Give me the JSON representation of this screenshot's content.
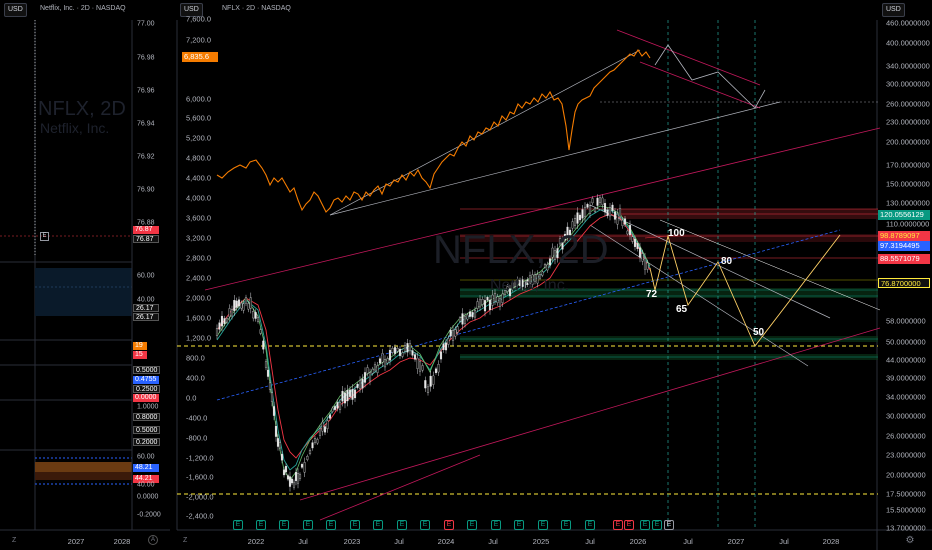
{
  "toolbar": {
    "currency": "USD",
    "currency_right": "USD"
  },
  "left_panel": {
    "title": "Netflix, Inc. · 2D · NASDAQ",
    "watermark_symbol": "NFLX, 2D",
    "watermark_name": "Netflix, Inc.",
    "price_ticks": [
      "77.00",
      "76.98",
      "76.96",
      "76.94",
      "76.92",
      "76.90",
      "76.88"
    ],
    "price_badges": [
      "76.87",
      "76.87"
    ],
    "e_marker": "E",
    "osc1_ticks": [
      "60.00",
      "40.00"
    ],
    "osc1_values": [
      "26.17",
      "26.17"
    ],
    "osc2_values": [
      "19",
      "15"
    ],
    "osc3_values": [
      "0.5000",
      "0.4755",
      "0.2500",
      "0.0000"
    ],
    "osc4_ticks": [
      "1.0000",
      "0.8000",
      "0.5000",
      "0.2000"
    ],
    "osc5_ticks": [
      "60.00",
      "40.00",
      "0.0000",
      "-0.2000"
    ],
    "osc5_values": [
      "48.21",
      "44.21"
    ],
    "x_labels": [
      "2027",
      "2028"
    ],
    "z_label": "Z",
    "a_label": "A"
  },
  "main": {
    "title": "NFLX · 2D · NASDAQ",
    "watermark_symbol": "NFLX, 2D",
    "watermark_name": "Netflix, Inc.",
    "left_axis": [
      "7,600.0",
      "7,200.0",
      "6,835.6",
      "6,000.0",
      "5,600.0",
      "5,200.0",
      "4,800.0",
      "4,400.0",
      "4,000.0",
      "3,600.0",
      "3,200.0",
      "2,800.0",
      "2,400.0",
      "2,000.0",
      "1,600.0",
      "1,200.0",
      "800.0",
      "400.0",
      "0.0",
      "-400.0",
      "-800.0",
      "-1,200.0",
      "-1,600.0",
      "-2,000.0",
      "-2,400.0"
    ],
    "right_axis": [
      "460.0000000",
      "400.0000000",
      "340.0000000",
      "300.0000000",
      "260.0000000",
      "230.0000000",
      "200.0000000",
      "170.0000000",
      "150.0000000",
      "130.0000000",
      "110.0000000",
      "58.0000000",
      "50.0000000",
      "44.0000000",
      "39.0000000",
      "34.0000000",
      "30.0000000",
      "26.0000000",
      "23.0000000",
      "20.0000000",
      "17.5000000",
      "15.5000000",
      "13.7000000"
    ],
    "right_badges": [
      "120.0556129",
      "98.8789097",
      "97.3194495",
      "88.5571079",
      "76.8700000"
    ],
    "x_labels": [
      "2022",
      "Jul",
      "2023",
      "Jul",
      "2024",
      "Jul",
      "2025",
      "Jul",
      "2026",
      "Jul",
      "2027",
      "Jul",
      "2028"
    ],
    "wave_labels": [
      "100",
      "80",
      "72",
      "65",
      "50"
    ],
    "earnings_marker": "E",
    "z_label": "Z"
  },
  "colors": {
    "up": "#089981",
    "down": "#f23645",
    "orange": "#f57c00",
    "blue": "#2962ff",
    "yellow": "#ffeb3b"
  }
}
